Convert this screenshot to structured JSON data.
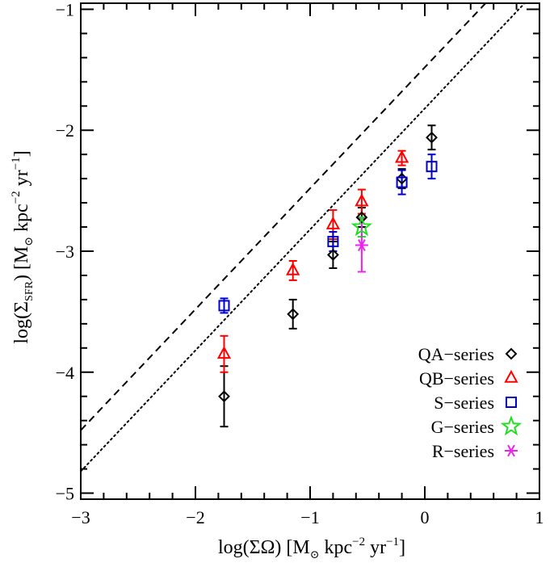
{
  "chart_data": {
    "type": "scatter",
    "title": "",
    "x_axis": {
      "label": {
        "pre": "log(ΣΩ)  [M",
        "sub": "⊙",
        "mid": " kpc",
        "sup": "−2",
        "post": " yr",
        "sup2": "−1",
        "end": "]"
      },
      "range": [
        -3,
        1
      ],
      "ticks": [
        -3,
        -2,
        -1,
        0,
        1
      ],
      "tick_labels": [
        "−3",
        "−2",
        "−1",
        "0",
        "1"
      ]
    },
    "y_axis": {
      "label": {
        "pre": "log(Σ",
        "sub": "SFR",
        "mid": ")  [M",
        "sub2": "⊙",
        "mid2": " kpc",
        "sup": "−2",
        "post": " yr",
        "sup2": "−1",
        "end": "]"
      },
      "range": [
        -5.05,
        -0.95
      ],
      "ticks": [
        -5,
        -4,
        -3,
        -2,
        -1
      ],
      "tick_labels": [
        "−5",
        "−4",
        "−3",
        "−2",
        "−1"
      ]
    },
    "reference_lines": [
      {
        "name": "dashed",
        "style": "dashed",
        "slope": 1.0,
        "intercept": -1.48
      },
      {
        "name": "dotted",
        "style": "dotted",
        "slope": 1.0,
        "intercept": -1.82
      }
    ],
    "series": [
      {
        "name": "QA-series",
        "label": "QA−series",
        "marker": "diamond",
        "color": "#000000",
        "points": [
          {
            "x": -1.75,
            "y": -4.2,
            "err": 0.25
          },
          {
            "x": -1.15,
            "y": -3.52,
            "err": 0.12
          },
          {
            "x": -0.8,
            "y": -3.03,
            "err": 0.11
          },
          {
            "x": -0.55,
            "y": -2.72,
            "err": 0.08
          },
          {
            "x": -0.2,
            "y": -2.4,
            "err": 0.08
          },
          {
            "x": 0.06,
            "y": -2.06,
            "err": 0.1
          }
        ]
      },
      {
        "name": "QB-series",
        "label": "QB−series",
        "marker": "triangle",
        "color": "#ff0000",
        "points": [
          {
            "x": -1.75,
            "y": -3.85,
            "err": 0.15
          },
          {
            "x": -1.15,
            "y": -3.16,
            "err": 0.08
          },
          {
            "x": -0.8,
            "y": -2.78,
            "err": 0.12
          },
          {
            "x": -0.55,
            "y": -2.59,
            "err": 0.1
          },
          {
            "x": -0.2,
            "y": -2.23,
            "err": 0.06
          }
        ]
      },
      {
        "name": "S-series",
        "label": "S−series",
        "marker": "square",
        "color": "#0000cc",
        "points": [
          {
            "x": -1.75,
            "y": -3.45,
            "err": 0.06
          },
          {
            "x": -0.8,
            "y": -2.92,
            "err": 0.08
          },
          {
            "x": -0.2,
            "y": -2.43,
            "err": 0.1
          },
          {
            "x": 0.06,
            "y": -2.3,
            "err": 0.1
          }
        ]
      },
      {
        "name": "G-series",
        "label": "G−series",
        "marker": "star",
        "color": "#22dd22",
        "points": [
          {
            "x": -0.55,
            "y": -2.8,
            "err": 0.08
          }
        ]
      },
      {
        "name": "R-series",
        "label": "R−series",
        "marker": "asterisk",
        "color": "#ee22ee",
        "points": [
          {
            "x": -0.55,
            "y": -2.95,
            "err": 0.22
          }
        ]
      }
    ],
    "legend": {
      "position": "bottom-right"
    }
  }
}
